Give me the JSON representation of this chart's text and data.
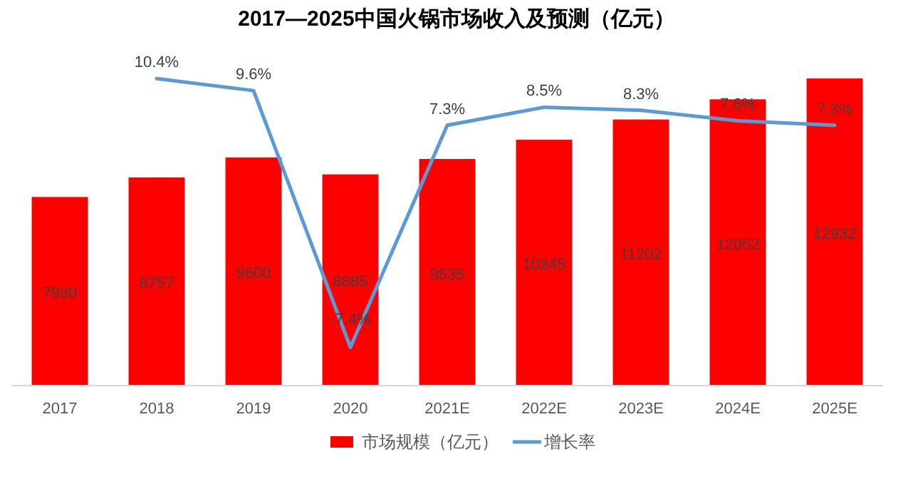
{
  "chart_data": {
    "type": "bar",
    "title": "2017—2025中国火锅市场收入及预测（亿元）",
    "categories": [
      "2017",
      "2018",
      "2019",
      "2020",
      "2021E",
      "2022E",
      "2023E",
      "2024E",
      "2025E"
    ],
    "series": [
      {
        "name": "市场规模（亿元）",
        "color": "#ff0000",
        "values": [
          7930,
          8757,
          9600,
          8885,
          9535,
          10345,
          11202,
          12052,
          12932
        ]
      },
      {
        "name": "增长率",
        "type": "line",
        "axis": "y2",
        "color": "#5b9bd5",
        "values": [
          null,
          10.4,
          9.6,
          -7.4,
          7.3,
          8.5,
          8.3,
          7.6,
          7.3
        ],
        "value_labels": [
          null,
          "10.4%",
          "9.6%",
          "-7.4%",
          "7.3%",
          "8.5%",
          "8.3%",
          "7.6%",
          "7.3%"
        ]
      }
    ],
    "data_labels": true,
    "legend": "bottom",
    "grid": false,
    "marker": "none",
    "line_style": "solid"
  }
}
